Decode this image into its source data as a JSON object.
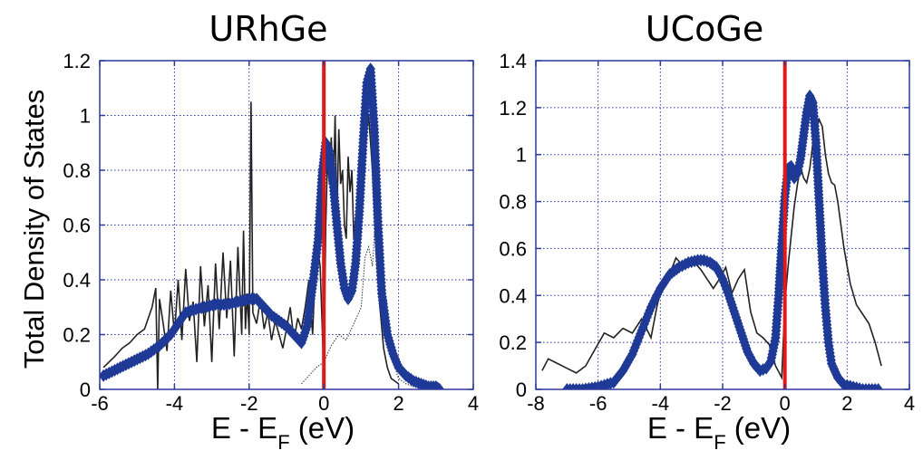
{
  "y_axis_label": "Total Density of States",
  "chart_data": [
    {
      "type": "line",
      "title": "URhGe",
      "xlabel": {
        "main": "E - E",
        "subscript": "F",
        "unit": " (eV)"
      },
      "xlim": [
        -6,
        4
      ],
      "ylim": [
        0,
        1.2
      ],
      "x_ticks": [
        "-6",
        "-4",
        "-2",
        "0",
        "2",
        "4"
      ],
      "y_ticks": [
        "0",
        "0.2",
        "0.4",
        "0.6",
        "0.8",
        "1",
        "1.2"
      ],
      "grid": true,
      "fermi_level_x": 0,
      "colors": {
        "diamond": "#1e3a96",
        "line": "#000000",
        "fermi": "#e01818",
        "grid": "#2c3a9c"
      },
      "series": [
        {
          "style": "diamond-markers",
          "x": [
            -5.9,
            -5.6,
            -5.3,
            -5.0,
            -4.7,
            -4.4,
            -4.1,
            -3.9,
            -3.7,
            -3.5,
            -3.2,
            -2.9,
            -2.6,
            -2.3,
            -2.0,
            -1.8,
            -1.6,
            -1.4,
            -1.2,
            -1.0,
            -0.8,
            -0.6,
            -0.45,
            -0.3,
            -0.15,
            -0.05,
            0.05,
            0.15,
            0.25,
            0.35,
            0.45,
            0.55,
            0.65,
            0.75,
            0.85,
            0.95,
            1.05,
            1.15,
            1.25,
            1.35,
            1.45,
            1.55,
            1.7,
            1.85,
            2.0,
            2.2,
            2.4,
            2.6,
            2.8,
            3.0,
            3.1
          ],
          "y": [
            0.05,
            0.07,
            0.09,
            0.11,
            0.13,
            0.16,
            0.2,
            0.24,
            0.28,
            0.29,
            0.3,
            0.31,
            0.31,
            0.32,
            0.33,
            0.33,
            0.3,
            0.27,
            0.25,
            0.23,
            0.2,
            0.17,
            0.23,
            0.38,
            0.55,
            0.78,
            0.9,
            0.87,
            0.75,
            0.6,
            0.46,
            0.37,
            0.33,
            0.36,
            0.46,
            0.65,
            0.9,
            1.12,
            1.17,
            0.95,
            0.6,
            0.35,
            0.2,
            0.13,
            0.08,
            0.05,
            0.03,
            0.02,
            0.01,
            0.01,
            0.0
          ]
        },
        {
          "style": "solid-line",
          "x": [
            -5.9,
            -5.6,
            -5.4,
            -5.2,
            -5.0,
            -4.8,
            -4.6,
            -4.5,
            -4.45,
            -4.4,
            -4.3,
            -4.2,
            -4.1,
            -4.0,
            -3.9,
            -3.8,
            -3.7,
            -3.6,
            -3.5,
            -3.4,
            -3.3,
            -3.2,
            -3.1,
            -3.0,
            -2.9,
            -2.8,
            -2.7,
            -2.6,
            -2.5,
            -2.4,
            -2.3,
            -2.2,
            -2.15,
            -2.1,
            -2.05,
            -2.0,
            -1.95,
            -1.9,
            -1.8,
            -1.7,
            -1.6,
            -1.5,
            -1.4,
            -1.3,
            -1.2,
            -1.1,
            -1.0,
            -0.9,
            -0.8,
            -0.7,
            -0.6,
            -0.5,
            -0.4,
            -0.3,
            -0.2,
            -0.1,
            0.0,
            0.05,
            0.1,
            0.15,
            0.2,
            0.25,
            0.3,
            0.35,
            0.4,
            0.45,
            0.5,
            0.55,
            0.6,
            0.65,
            0.7,
            0.75,
            0.8,
            0.85,
            0.9,
            0.95,
            1.0,
            1.05,
            1.1,
            1.15,
            1.2,
            1.3,
            1.4,
            1.5,
            1.6,
            1.7,
            1.8,
            2.0
          ],
          "y": [
            0.08,
            0.12,
            0.15,
            0.17,
            0.2,
            0.22,
            0.3,
            0.37,
            0.0,
            0.33,
            0.24,
            0.14,
            0.36,
            0.2,
            0.4,
            0.18,
            0.44,
            0.25,
            0.32,
            0.1,
            0.45,
            0.23,
            0.38,
            0.1,
            0.46,
            0.22,
            0.5,
            0.26,
            0.47,
            0.12,
            0.52,
            0.2,
            0.58,
            0.22,
            0.35,
            0.2,
            1.05,
            0.28,
            0.24,
            0.33,
            0.22,
            0.28,
            0.18,
            0.25,
            0.2,
            0.15,
            0.22,
            0.3,
            0.18,
            0.26,
            0.22,
            0.3,
            0.4,
            0.2,
            0.55,
            0.45,
            0.05,
            0.6,
            0.85,
            0.75,
            0.92,
            0.7,
            1.0,
            0.62,
            0.95,
            0.75,
            0.8,
            0.6,
            0.55,
            0.85,
            0.72,
            0.8,
            0.55,
            0.62,
            0.52,
            0.7,
            0.95,
            0.85,
            1.05,
            0.95,
            1.0,
            0.8,
            0.5,
            0.3,
            0.15,
            0.08,
            0.04,
            0.02
          ]
        },
        {
          "style": "dotted-line",
          "x": [
            -0.6,
            -0.4,
            -0.2,
            0.0,
            0.2,
            0.4,
            0.6,
            0.8,
            1.0,
            1.1,
            1.2,
            1.3,
            1.4,
            1.5,
            1.6,
            1.7,
            1.8,
            1.9,
            2.0,
            2.2,
            2.4
          ],
          "y": [
            0.02,
            0.05,
            0.08,
            0.1,
            0.16,
            0.2,
            0.18,
            0.24,
            0.3,
            0.48,
            0.52,
            0.45,
            0.68,
            0.55,
            0.4,
            0.3,
            0.15,
            0.08,
            0.04,
            0.02,
            0.01
          ]
        }
      ]
    },
    {
      "type": "line",
      "title": "UCoGe",
      "xlabel": {
        "main": "E - E",
        "subscript": "F",
        "unit": " (eV)"
      },
      "xlim": [
        -8,
        4
      ],
      "ylim": [
        0,
        1.4
      ],
      "x_ticks": [
        "-8",
        "-6",
        "-4",
        "-2",
        "0",
        "2",
        "4"
      ],
      "y_ticks": [
        "0",
        "0.2",
        "0.4",
        "0.6",
        "0.8",
        "1",
        "1.2",
        "1.4"
      ],
      "grid": true,
      "fermi_level_x": 0,
      "colors": {
        "diamond": "#1e3a96",
        "line": "#000000",
        "fermi": "#e01818",
        "grid": "#2c3a9c"
      },
      "series": [
        {
          "style": "diamond-markers",
          "x": [
            -7.0,
            -6.5,
            -6.0,
            -5.5,
            -5.2,
            -4.9,
            -4.6,
            -4.3,
            -4.0,
            -3.7,
            -3.4,
            -3.1,
            -2.8,
            -2.6,
            -2.4,
            -2.2,
            -2.0,
            -1.8,
            -1.6,
            -1.4,
            -1.2,
            -1.0,
            -0.8,
            -0.6,
            -0.45,
            -0.3,
            -0.2,
            -0.1,
            0.0,
            0.1,
            0.2,
            0.3,
            0.4,
            0.5,
            0.6,
            0.7,
            0.8,
            0.9,
            1.0,
            1.1,
            1.2,
            1.3,
            1.4,
            1.5,
            1.7,
            1.9,
            2.2,
            2.5,
            2.8,
            3.0
          ],
          "y": [
            0.0,
            0.0,
            0.01,
            0.03,
            0.08,
            0.15,
            0.25,
            0.35,
            0.43,
            0.49,
            0.52,
            0.54,
            0.55,
            0.55,
            0.54,
            0.52,
            0.47,
            0.4,
            0.32,
            0.24,
            0.16,
            0.11,
            0.08,
            0.09,
            0.12,
            0.22,
            0.4,
            0.62,
            0.82,
            0.94,
            0.95,
            0.9,
            0.92,
            0.98,
            1.08,
            1.18,
            1.25,
            1.22,
            1.05,
            0.8,
            0.55,
            0.35,
            0.2,
            0.11,
            0.05,
            0.02,
            0.01,
            0.0,
            0.0,
            0.0
          ]
        },
        {
          "style": "solid-line",
          "x": [
            -7.8,
            -7.6,
            -7.3,
            -7.0,
            -6.7,
            -6.4,
            -6.1,
            -5.8,
            -5.5,
            -5.2,
            -4.9,
            -4.6,
            -4.3,
            -4.1,
            -3.9,
            -3.7,
            -3.5,
            -3.3,
            -3.1,
            -2.9,
            -2.7,
            -2.5,
            -2.3,
            -2.1,
            -1.9,
            -1.7,
            -1.5,
            -1.3,
            -1.1,
            -0.9,
            -0.7,
            -0.5,
            -0.3,
            -0.1,
            0.0,
            0.1,
            0.2,
            0.3,
            0.4,
            0.5,
            0.6,
            0.7,
            0.8,
            0.9,
            1.0,
            1.1,
            1.2,
            1.3,
            1.4,
            1.5,
            1.6,
            1.7,
            1.9,
            2.1,
            2.3,
            2.5,
            2.7,
            2.9,
            3.1
          ],
          "y": [
            0.08,
            0.13,
            0.11,
            0.09,
            0.07,
            0.1,
            0.17,
            0.24,
            0.22,
            0.26,
            0.24,
            0.3,
            0.22,
            0.36,
            0.46,
            0.49,
            0.56,
            0.53,
            0.56,
            0.54,
            0.51,
            0.47,
            0.43,
            0.47,
            0.52,
            0.41,
            0.47,
            0.51,
            0.33,
            0.24,
            0.22,
            0.19,
            0.1,
            0.05,
            0.37,
            0.52,
            0.65,
            0.78,
            0.87,
            0.95,
            0.9,
            0.88,
            0.94,
            1.05,
            1.1,
            1.15,
            1.12,
            1.0,
            0.92,
            0.88,
            0.87,
            0.8,
            0.6,
            0.45,
            0.36,
            0.32,
            0.28,
            0.2,
            0.1
          ]
        }
      ]
    }
  ]
}
